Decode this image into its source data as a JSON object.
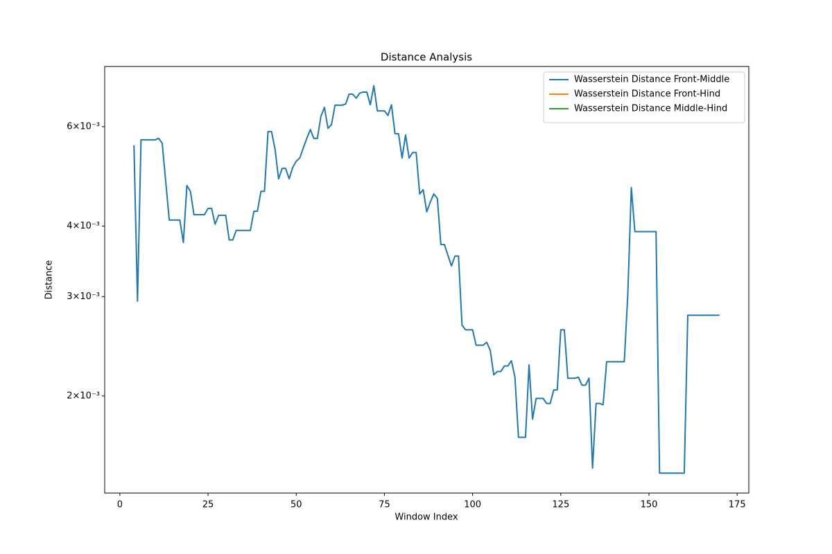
{
  "chart_data": {
    "type": "line",
    "title": "Distance Analysis",
    "xlabel": "Window Index",
    "ylabel": "Distance",
    "x": [
      4,
      5,
      6,
      7,
      8,
      9,
      10,
      11,
      12,
      13,
      14,
      15,
      16,
      17,
      18,
      19,
      20,
      21,
      22,
      23,
      24,
      25,
      26,
      27,
      28,
      29,
      30,
      31,
      32,
      33,
      34,
      35,
      36,
      37,
      38,
      39,
      40,
      41,
      42,
      43,
      44,
      45,
      46,
      47,
      48,
      49,
      50,
      51,
      52,
      53,
      54,
      55,
      56,
      57,
      58,
      59,
      60,
      61,
      62,
      63,
      64,
      65,
      66,
      67,
      68,
      69,
      70,
      71,
      72,
      73,
      74,
      75,
      76,
      77,
      78,
      79,
      80,
      81,
      82,
      83,
      84,
      85,
      86,
      87,
      88,
      89,
      90,
      91,
      92,
      93,
      94,
      95,
      96,
      97,
      98,
      99,
      100,
      101,
      102,
      103,
      104,
      105,
      106,
      107,
      108,
      109,
      110,
      111,
      112,
      113,
      114,
      115,
      116,
      117,
      118,
      119,
      120,
      121,
      122,
      123,
      124,
      125,
      126,
      127,
      128,
      129,
      130,
      131,
      132,
      133,
      134,
      135,
      136,
      137,
      138,
      139,
      140,
      141,
      142,
      143,
      144,
      145,
      146,
      147,
      148,
      149,
      150,
      151,
      152,
      153,
      154,
      155,
      156,
      157,
      158,
      159,
      160,
      161,
      162,
      163,
      164,
      165,
      166,
      167,
      168,
      169,
      170
    ],
    "series": [
      {
        "name": "Wasserstein Distance Front-Middle",
        "color": "#1f77b4",
        "values": [
          0.00556,
          0.002945,
          0.005687,
          0.005687,
          0.005687,
          0.005687,
          0.005687,
          0.00572,
          0.00561,
          0.0048,
          0.0041,
          0.0041,
          0.0041,
          0.0041,
          0.00374,
          0.00472,
          0.00461,
          0.00419,
          0.00419,
          0.00419,
          0.00419,
          0.0043,
          0.0043,
          0.00403,
          0.00418,
          0.00418,
          0.00418,
          0.00378,
          0.00378,
          0.00393,
          0.00393,
          0.00393,
          0.00393,
          0.00393,
          0.00425,
          0.00425,
          0.00461,
          0.00461,
          0.00588,
          0.00588,
          0.00547,
          0.00485,
          0.00506,
          0.00506,
          0.00485,
          0.00508,
          0.00521,
          0.00528,
          0.0055,
          0.00572,
          0.00593,
          0.00572,
          0.00572,
          0.00626,
          0.00649,
          0.00596,
          0.00605,
          0.00655,
          0.00655,
          0.00655,
          0.00658,
          0.00685,
          0.00685,
          0.00674,
          0.00688,
          0.00691,
          0.00691,
          0.00656,
          0.00709,
          0.0064,
          0.0064,
          0.0064,
          0.00628,
          0.00656,
          0.00583,
          0.00583,
          0.00528,
          0.0058,
          0.00528,
          0.0054,
          0.0054,
          0.00456,
          0.00464,
          0.00424,
          0.00441,
          0.00456,
          0.00448,
          0.00371,
          0.00371,
          0.00355,
          0.0034,
          0.00354,
          0.00354,
          0.00267,
          0.00262,
          0.00262,
          0.00262,
          0.00246,
          0.00246,
          0.00246,
          0.00249,
          0.00241,
          0.00218,
          0.00221,
          0.00221,
          0.00226,
          0.00226,
          0.00231,
          0.00216,
          0.00169,
          0.00169,
          0.00169,
          0.00227,
          0.00182,
          0.00198,
          0.00198,
          0.00198,
          0.00194,
          0.00194,
          0.00205,
          0.00205,
          0.00262,
          0.00262,
          0.00215,
          0.00215,
          0.00215,
          0.00216,
          0.00209,
          0.00209,
          0.00215,
          0.00149,
          0.00194,
          0.00194,
          0.00193,
          0.0023,
          0.0023,
          0.0023,
          0.0023,
          0.0023,
          0.0023,
          0.00303,
          0.00468,
          0.00391,
          0.00391,
          0.00391,
          0.00391,
          0.00391,
          0.00391,
          0.00391,
          0.00146,
          0.00146,
          0.00146,
          0.00146,
          0.00146,
          0.00146,
          0.00146,
          0.00146,
          0.00278,
          0.00278,
          0.00278,
          0.00278,
          0.00278,
          0.00278,
          0.00278,
          0.00278,
          0.00278,
          0.00278
        ]
      },
      {
        "name": "Wasserstein Distance Front-Hind",
        "color": "#ff7f0e",
        "values": [
          null,
          null,
          null,
          null,
          null,
          null,
          null,
          null,
          null,
          null,
          null,
          null,
          null,
          null,
          null,
          null,
          null,
          null,
          null,
          null,
          null,
          null,
          null,
          null,
          null,
          null,
          null,
          null,
          null,
          null,
          null,
          null,
          null,
          null,
          null,
          null,
          null,
          null,
          null,
          null,
          null,
          null,
          null,
          null,
          null,
          null,
          null,
          null,
          null,
          null,
          null,
          null,
          null,
          null,
          null,
          null,
          null,
          null,
          null,
          null,
          null,
          null,
          null,
          null,
          null,
          null,
          null,
          null,
          null,
          null,
          null,
          null,
          null,
          null,
          null,
          null,
          null,
          null,
          null,
          null,
          null,
          null,
          null,
          null,
          null,
          null,
          null,
          null,
          null,
          null,
          null,
          null,
          null,
          null,
          null,
          null,
          null,
          null,
          null,
          null,
          null,
          null,
          null,
          null,
          null,
          null,
          null,
          null,
          null,
          null,
          null,
          null,
          null,
          null,
          null,
          null,
          null,
          null,
          null,
          null,
          null,
          null,
          null,
          null,
          null,
          null,
          null,
          null,
          null,
          null,
          null,
          null,
          null,
          null,
          null,
          null,
          null,
          null,
          null,
          null,
          null,
          null,
          null,
          null,
          null,
          null,
          null,
          null,
          null,
          null,
          null,
          null,
          null,
          null,
          null,
          null,
          null,
          null,
          null,
          null,
          null,
          null,
          null,
          null,
          null,
          null,
          null
        ]
      },
      {
        "name": "Wasserstein Distance Middle-Hind",
        "color": "#2ca02c",
        "values": [
          null,
          null,
          null,
          null,
          null,
          null,
          null,
          null,
          null,
          null,
          null,
          null,
          null,
          null,
          null,
          null,
          null,
          null,
          null,
          null,
          null,
          null,
          null,
          null,
          null,
          null,
          null,
          null,
          null,
          null,
          null,
          null,
          null,
          null,
          null,
          null,
          null,
          null,
          null,
          null,
          null,
          null,
          null,
          null,
          null,
          null,
          null,
          null,
          null,
          null,
          null,
          null,
          null,
          null,
          null,
          null,
          null,
          null,
          null,
          null,
          null,
          null,
          null,
          null,
          null,
          null,
          null,
          null,
          null,
          null,
          null,
          null,
          null,
          null,
          null,
          null,
          null,
          null,
          null,
          null,
          null,
          null,
          null,
          null,
          null,
          null,
          null,
          null,
          null,
          null,
          null,
          null,
          null,
          null,
          null,
          null,
          null,
          null,
          null,
          null,
          null,
          null,
          null,
          null,
          null,
          null,
          null,
          null,
          null,
          null,
          null,
          null,
          null,
          null,
          null,
          null,
          null,
          null,
          null,
          null,
          null,
          null,
          null,
          null,
          null,
          null,
          null,
          null,
          null,
          null,
          null,
          null,
          null,
          null,
          null,
          null,
          null,
          null,
          null,
          null,
          null,
          null,
          null,
          null,
          null,
          null,
          null,
          null,
          null,
          null,
          null,
          null,
          null,
          null,
          null,
          null,
          null,
          null,
          null,
          null,
          null,
          null,
          null,
          null,
          null,
          null,
          null
        ]
      }
    ],
    "xlim": [
      -4.3,
      178.3
    ],
    "xticks": [
      0,
      25,
      50,
      75,
      100,
      125,
      150,
      175
    ],
    "ylim": [
      0.001346,
      0.00767
    ],
    "yscale": "log",
    "yticks": [
      {
        "value": 0.002,
        "label": "2×10⁻³"
      },
      {
        "value": 0.003,
        "label": "3×10⁻³"
      },
      {
        "value": 0.004,
        "label": "4×10⁻³"
      },
      {
        "value": 0.006,
        "label": "6×10⁻³"
      }
    ],
    "grid": false,
    "legend": "upper right"
  }
}
